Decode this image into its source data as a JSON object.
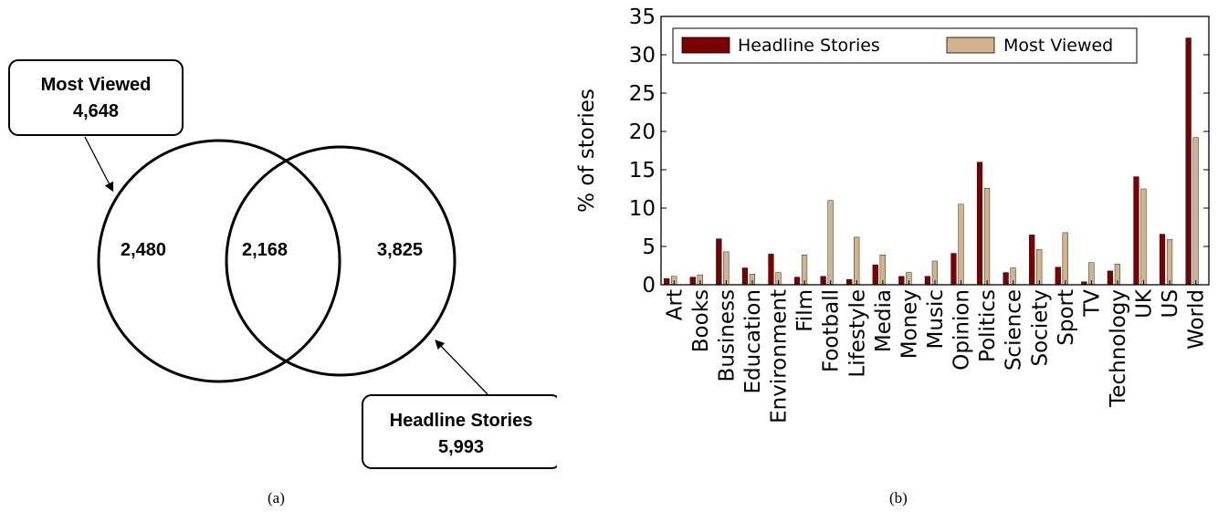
{
  "venn": {
    "sets": [
      {
        "name": "Most Viewed",
        "total": "4,648"
      },
      {
        "name": "Headline Stories",
        "total": "5,993"
      }
    ],
    "only_most_viewed": "2,480",
    "intersection": "2,168",
    "only_headline": "3,825",
    "caption": "(a)"
  },
  "chart_data": {
    "type": "bar",
    "caption": "(b)",
    "ylabel": "% of stories",
    "xlabel": "",
    "ylim": [
      0,
      35
    ],
    "yticks": [
      0,
      5,
      10,
      15,
      20,
      25,
      30,
      35
    ],
    "grid": false,
    "legend_placement": "top",
    "categories": [
      "Art",
      "Books",
      "Business",
      "Education",
      "Environment",
      "Film",
      "Football",
      "Lifestyle",
      "Media",
      "Money",
      "Music",
      "Opinion",
      "Politics",
      "Science",
      "Society",
      "Sport",
      "TV",
      "Technology",
      "UK",
      "US",
      "World"
    ],
    "series": [
      {
        "name": "Headline Stories",
        "color": "#7b0000",
        "values": [
          0.8,
          1.0,
          6.0,
          2.2,
          4.0,
          1.0,
          1.1,
          0.7,
          2.6,
          1.1,
          1.1,
          4.1,
          16.0,
          1.6,
          6.5,
          2.3,
          0.4,
          1.8,
          14.1,
          6.6,
          32.2
        ]
      },
      {
        "name": "Most Viewed",
        "color": "#d2b48c",
        "values": [
          1.1,
          1.3,
          4.3,
          1.4,
          1.6,
          3.9,
          11.0,
          6.2,
          3.9,
          1.6,
          3.1,
          10.5,
          12.6,
          2.2,
          4.6,
          6.8,
          2.9,
          2.7,
          12.5,
          5.9,
          19.2
        ]
      }
    ]
  }
}
